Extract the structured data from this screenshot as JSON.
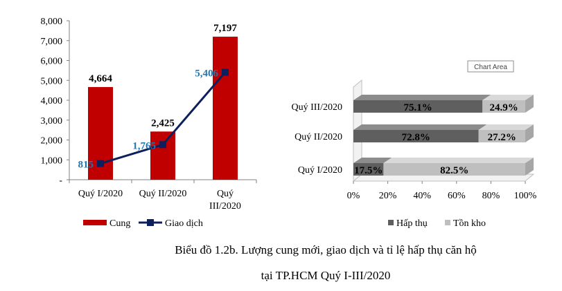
{
  "chart_data": [
    {
      "type": "bar+line",
      "categories": [
        "Quý I/2020",
        "Quý II/2020",
        "Quý III/2020"
      ],
      "series": [
        {
          "name": "Cung",
          "type": "bar",
          "values": [
            4664,
            2425,
            7197
          ],
          "labels": [
            "4,664",
            "2,425",
            "7,197"
          ],
          "color": "#c00000"
        },
        {
          "name": "Giao dịch",
          "type": "line",
          "values": [
            815,
            1765,
            5406
          ],
          "labels": [
            "815",
            "1,765",
            "5,406"
          ],
          "color": "#0d1f5c",
          "label_color": "#1f78b4"
        }
      ],
      "ylim": [
        0,
        8000
      ],
      "yticks": [
        "-",
        "1,000",
        "2,000",
        "3,000",
        "4,000",
        "5,000",
        "6,000",
        "7,000",
        "8,000"
      ],
      "legend_position": "bottom",
      "grid": false
    },
    {
      "type": "stacked-bar-horizontal-3d",
      "categories": [
        "Quý I/2020",
        "Quý II/2020",
        "Quý III/2020"
      ],
      "series": [
        {
          "name": "Hấp thụ",
          "values": [
            17.5,
            72.8,
            75.1
          ],
          "labels": [
            "17.5%",
            "72.8%",
            "75.1%"
          ],
          "color": "#5f5f5f"
        },
        {
          "name": "Tồn kho",
          "values": [
            82.5,
            27.2,
            24.9
          ],
          "labels": [
            "82.5%",
            "27.2%",
            "24.9%"
          ],
          "color": "#bfbfbf"
        }
      ],
      "xticks": [
        "0%",
        "20%",
        "40%",
        "60%",
        "80%",
        "100%"
      ],
      "xlim": [
        0,
        100
      ],
      "tooltip": "Chart Area",
      "legend_position": "bottom",
      "grid": false
    }
  ],
  "caption": {
    "line1": "Biểu đồ 1.2b. Lượng cung mới, giao dịch và tỉ lệ hấp thụ căn hộ",
    "line2": "tại TP.HCM Quý I-III/2020"
  }
}
